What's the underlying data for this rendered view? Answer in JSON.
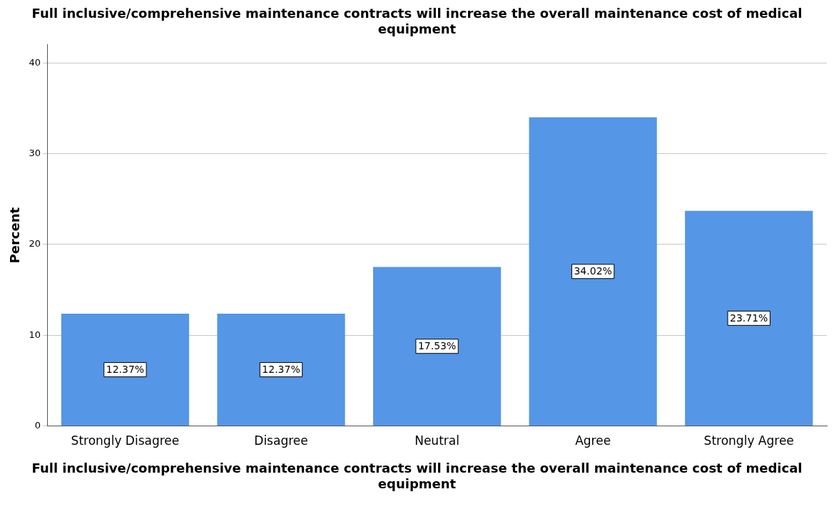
{
  "chart_data": {
    "type": "bar",
    "title": "Full inclusive/comprehensive maintenance contracts will increase the overall maintenance cost of medical equipment",
    "xlabel": "Full inclusive/comprehensive maintenance contracts will increase the overall maintenance cost of medical equipment",
    "ylabel": "Percent",
    "categories": [
      "Strongly Disagree",
      "Disagree",
      "Neutral",
      "Agree",
      "Strongly Agree"
    ],
    "values": [
      12.37,
      12.37,
      17.53,
      34.02,
      23.71
    ],
    "value_labels": [
      "12.37%",
      "12.37%",
      "17.53%",
      "34.02%",
      "23.71%"
    ],
    "color": "#5596e6",
    "ylim": [
      0,
      42
    ],
    "yticks": [
      0,
      10,
      20,
      30,
      40
    ],
    "grid": "y"
  }
}
